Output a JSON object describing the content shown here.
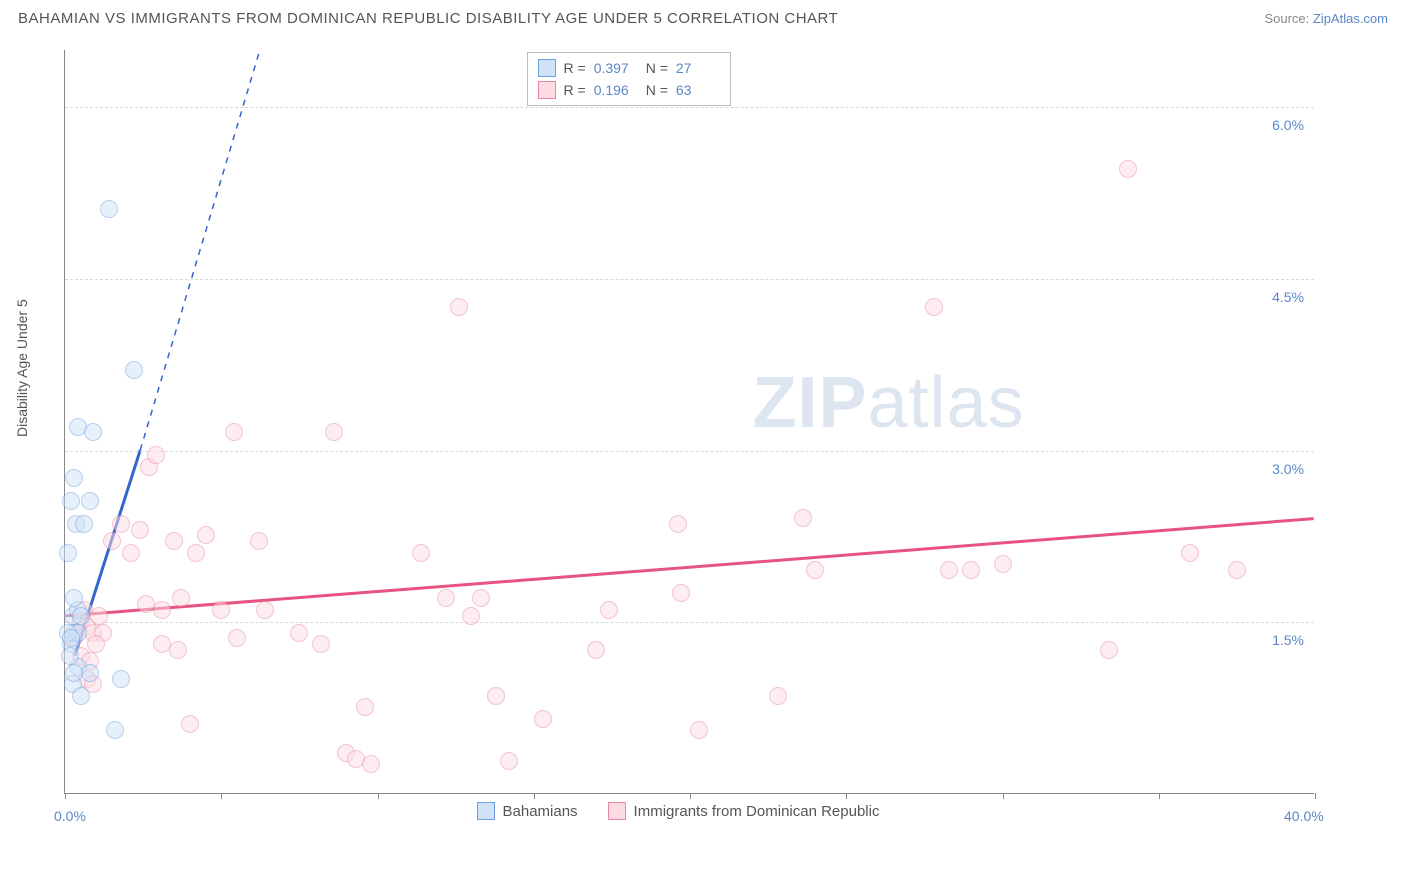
{
  "header": {
    "title": "BAHAMIAN VS IMMIGRANTS FROM DOMINICAN REPUBLIC DISABILITY AGE UNDER 5 CORRELATION CHART",
    "source_prefix": "Source: ",
    "source_link": "ZipAtlas.com"
  },
  "watermark": {
    "zip": "ZIP",
    "rest": "atlas"
  },
  "chart": {
    "type": "scatter",
    "ylabel": "Disability Age Under 5",
    "xlim": [
      0,
      40
    ],
    "ylim": [
      0,
      6.5
    ],
    "y_gridlines": [
      1.5,
      3.0,
      4.5,
      6.0
    ],
    "y_tick_labels": [
      "1.5%",
      "3.0%",
      "4.5%",
      "6.0%"
    ],
    "x_ticks": [
      0,
      5,
      10,
      15,
      20,
      25,
      30,
      35,
      40
    ],
    "x_min_label": "0.0%",
    "x_max_label": "40.0%",
    "background_color": "#ffffff",
    "grid_color": "#d9d9d9",
    "axis_color": "#888888",
    "tick_font_color": "#5b86c7",
    "label_font_color": "#555555",
    "point_radius": 9,
    "point_opacity": 0.5,
    "point_border_width": 1.2
  },
  "series": {
    "a": {
      "name": "Bahamians",
      "fill": "#cfe2f7",
      "stroke": "#6fa0dd",
      "trend_color": "#3366cc",
      "trend_width": 3,
      "R": "0.397",
      "N": "27",
      "trend": {
        "x1": 0.3,
        "y1": 1.2,
        "x2": 2.4,
        "y2": 3.0,
        "dash_to_x": 7.0,
        "dash_to_y": 7.2
      },
      "points": [
        [
          0.2,
          1.3
        ],
        [
          0.3,
          1.4
        ],
        [
          0.4,
          1.4
        ],
        [
          0.25,
          1.55
        ],
        [
          0.4,
          1.6
        ],
        [
          0.5,
          1.55
        ],
        [
          0.3,
          1.7
        ],
        [
          0.1,
          2.1
        ],
        [
          0.35,
          2.35
        ],
        [
          0.6,
          2.35
        ],
        [
          0.2,
          2.55
        ],
        [
          0.8,
          2.55
        ],
        [
          0.3,
          2.75
        ],
        [
          0.4,
          3.2
        ],
        [
          0.9,
          3.15
        ],
        [
          2.2,
          3.7
        ],
        [
          1.4,
          5.1
        ],
        [
          0.4,
          1.1
        ],
        [
          0.8,
          1.05
        ],
        [
          1.8,
          1.0
        ],
        [
          0.25,
          0.95
        ],
        [
          0.5,
          0.85
        ],
        [
          1.6,
          0.55
        ],
        [
          0.1,
          1.4
        ],
        [
          0.2,
          1.35
        ],
        [
          0.15,
          1.2
        ],
        [
          0.3,
          1.05
        ]
      ]
    },
    "b": {
      "name": "Immigrants from Dominican Republic",
      "fill": "#fcdbe3",
      "stroke": "#e78aa3",
      "trend_color": "#e75480",
      "trend_width": 3,
      "R": "0.196",
      "N": "63",
      "trend": {
        "x1": 0,
        "y1": 1.55,
        "x2": 40,
        "y2": 2.4
      },
      "points": [
        [
          0.3,
          1.35
        ],
        [
          0.5,
          1.5
        ],
        [
          0.6,
          1.6
        ],
        [
          0.7,
          1.45
        ],
        [
          0.9,
          1.4
        ],
        [
          1.1,
          1.55
        ],
        [
          1.2,
          1.4
        ],
        [
          0.5,
          1.2
        ],
        [
          0.8,
          1.15
        ],
        [
          1.0,
          1.3
        ],
        [
          0.7,
          1.0
        ],
        [
          0.9,
          0.95
        ],
        [
          1.5,
          2.2
        ],
        [
          1.8,
          2.35
        ],
        [
          2.1,
          2.1
        ],
        [
          2.4,
          2.3
        ],
        [
          2.6,
          1.65
        ],
        [
          3.1,
          1.6
        ],
        [
          3.5,
          2.2
        ],
        [
          3.7,
          1.7
        ],
        [
          2.7,
          2.85
        ],
        [
          2.9,
          2.95
        ],
        [
          4.2,
          2.1
        ],
        [
          4.5,
          2.25
        ],
        [
          3.1,
          1.3
        ],
        [
          3.6,
          1.25
        ],
        [
          4.0,
          0.6
        ],
        [
          5.4,
          3.15
        ],
        [
          5.0,
          1.6
        ],
        [
          5.5,
          1.35
        ],
        [
          6.2,
          2.2
        ],
        [
          6.4,
          1.6
        ],
        [
          7.5,
          1.4
        ],
        [
          8.2,
          1.3
        ],
        [
          8.6,
          3.15
        ],
        [
          9.0,
          0.35
        ],
        [
          9.3,
          0.3
        ],
        [
          9.6,
          0.75
        ],
        [
          9.8,
          0.25
        ],
        [
          11.4,
          2.1
        ],
        [
          12.2,
          1.7
        ],
        [
          12.6,
          4.25
        ],
        [
          13.0,
          1.55
        ],
        [
          13.3,
          1.7
        ],
        [
          13.8,
          0.85
        ],
        [
          14.2,
          0.28
        ],
        [
          15.3,
          0.65
        ],
        [
          17.0,
          1.25
        ],
        [
          17.4,
          1.6
        ],
        [
          19.6,
          2.35
        ],
        [
          19.7,
          1.75
        ],
        [
          20.3,
          0.55
        ],
        [
          22.8,
          0.85
        ],
        [
          23.6,
          2.4
        ],
        [
          24.0,
          1.95
        ],
        [
          27.8,
          4.25
        ],
        [
          28.3,
          1.95
        ],
        [
          29.0,
          1.95
        ],
        [
          30.0,
          2.0
        ],
        [
          33.4,
          1.25
        ],
        [
          34.0,
          5.45
        ],
        [
          36.0,
          2.1
        ],
        [
          37.5,
          1.95
        ]
      ]
    }
  },
  "legend_top": {
    "r_label": "R =",
    "n_label": "N ="
  },
  "legend_bottom": {
    "items": [
      "a",
      "b"
    ]
  }
}
